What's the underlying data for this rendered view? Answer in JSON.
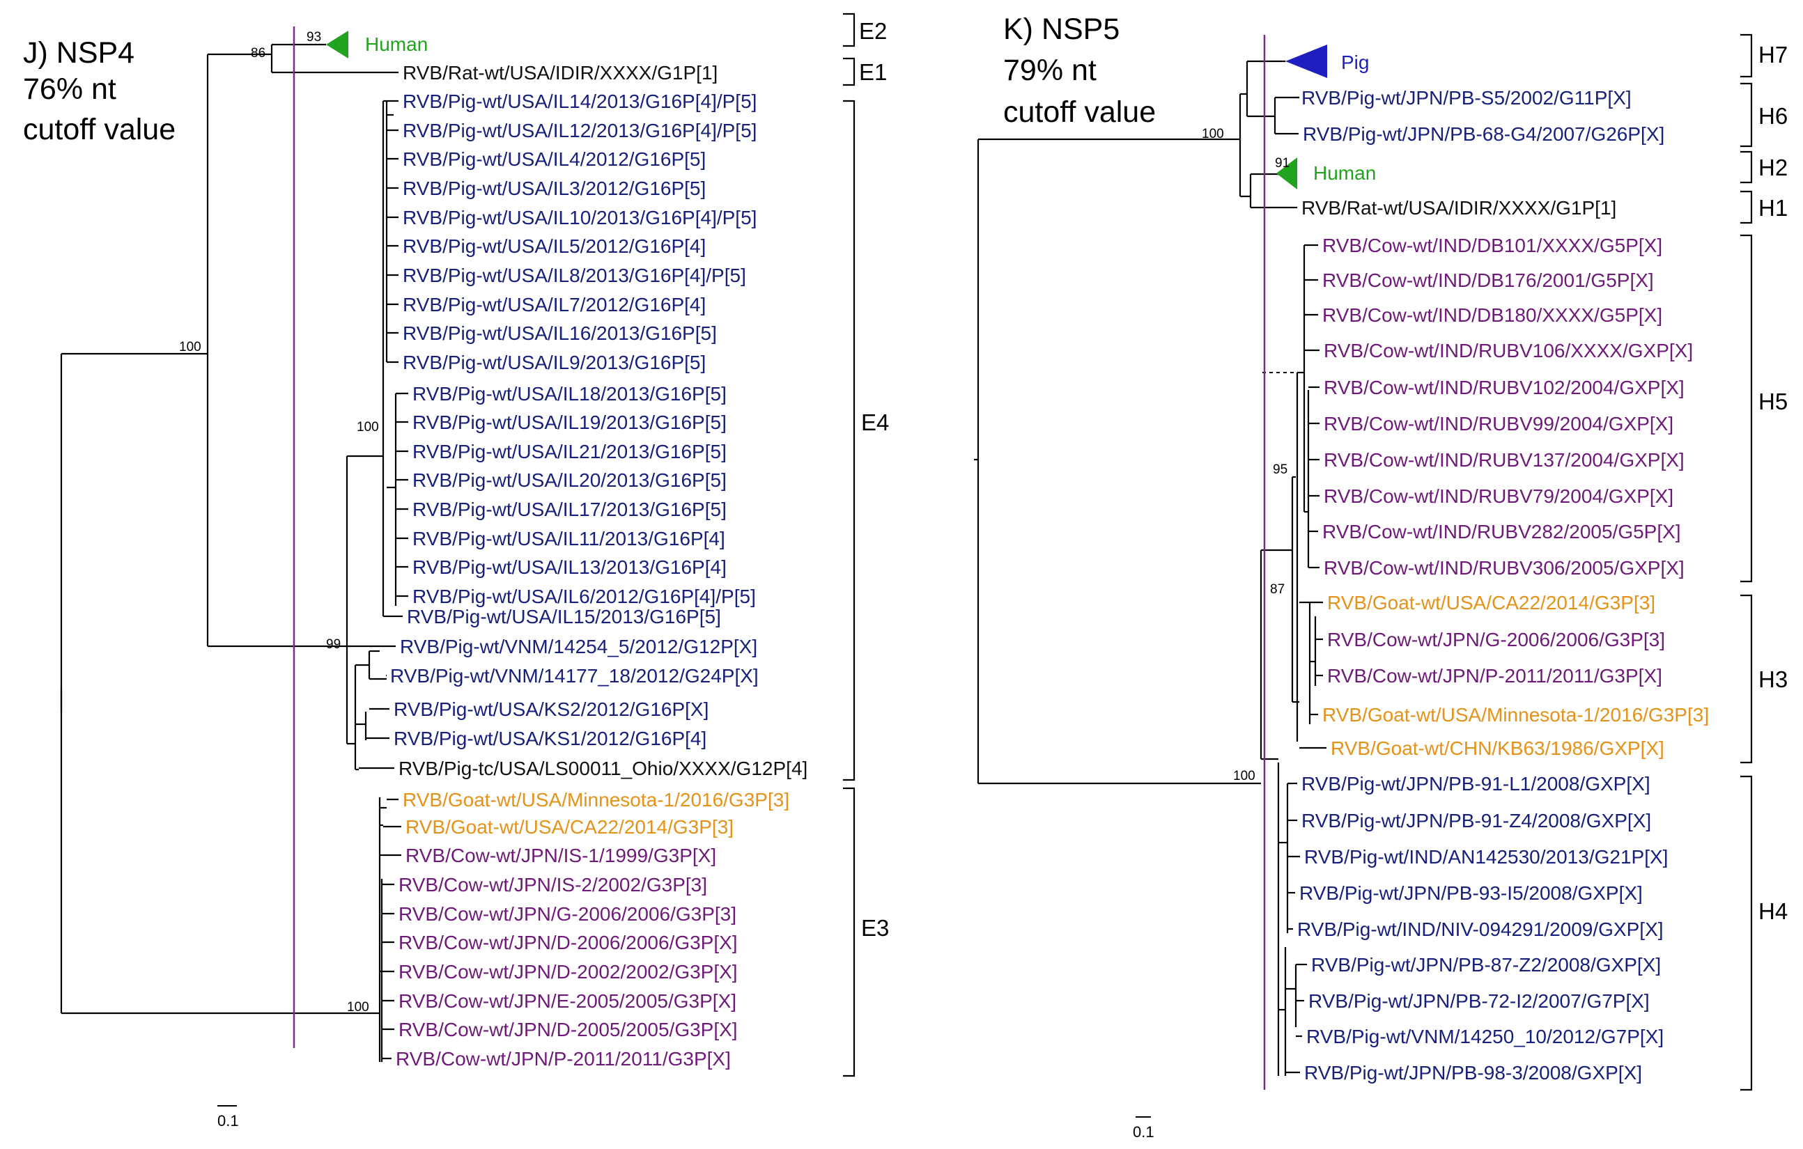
{
  "colors": {
    "pig": "#17207a",
    "cow": "#6e1a78",
    "goat": "#e5921a",
    "human": "#22a31f",
    "rat": "#111111",
    "cutoff": "#7a2a8a",
    "pig_clade": "#1f1fbf"
  },
  "panels": [
    {
      "title": [
        "J) NSP4",
        "76% nt",
        "cutoff value"
      ],
      "scale_label": "0.1",
      "collapsed": [
        {
          "label": "Human",
          "color": "human",
          "bootstrap": "93"
        }
      ],
      "leaves": [
        {
          "label": "RVB/Rat-wt/USA/IDIR/XXXX/G1P[1]",
          "color": "rat"
        },
        {
          "label": "RVB/Pig-wt/USA/IL14/2013/G16P[4]/P[5]",
          "color": "pig"
        },
        {
          "label": "RVB/Pig-wt/USA/IL12/2013/G16P[4]/P[5]",
          "color": "pig"
        },
        {
          "label": "RVB/Pig-wt/USA/IL4/2012/G16P[5]",
          "color": "pig"
        },
        {
          "label": "RVB/Pig-wt/USA/IL3/2012/G16P[5]",
          "color": "pig"
        },
        {
          "label": "RVB/Pig-wt/USA/IL10/2013/G16P[4]/P[5]",
          "color": "pig"
        },
        {
          "label": "RVB/Pig-wt/USA/IL5/2012/G16P[4]",
          "color": "pig"
        },
        {
          "label": "RVB/Pig-wt/USA/IL8/2013/G16P[4]/P[5]",
          "color": "pig"
        },
        {
          "label": "RVB/Pig-wt/USA/IL7/2012/G16P[4]",
          "color": "pig"
        },
        {
          "label": "RVB/Pig-wt/USA/IL16/2013/G16P[5]",
          "color": "pig"
        },
        {
          "label": "RVB/Pig-wt/USA/IL9/2013/G16P[5]",
          "color": "pig"
        },
        {
          "label": "RVB/Pig-wt/USA/IL18/2013/G16P[5]",
          "color": "pig"
        },
        {
          "label": "RVB/Pig-wt/USA/IL19/2013/G16P[5]",
          "color": "pig"
        },
        {
          "label": "RVB/Pig-wt/USA/IL21/2013/G16P[5]",
          "color": "pig"
        },
        {
          "label": "RVB/Pig-wt/USA/IL20/2013/G16P[5]",
          "color": "pig"
        },
        {
          "label": "RVB/Pig-wt/USA/IL17/2013/G16P[5]",
          "color": "pig"
        },
        {
          "label": "RVB/Pig-wt/USA/IL11/2013/G16P[4]",
          "color": "pig"
        },
        {
          "label": "RVB/Pig-wt/USA/IL13/2013/G16P[4]",
          "color": "pig"
        },
        {
          "label": "RVB/Pig-wt/USA/IL6/2012/G16P[4]/P[5]",
          "color": "pig"
        },
        {
          "label": "RVB/Pig-wt/USA/IL15/2013/G16P[5]",
          "color": "pig"
        },
        {
          "label": "RVB/Pig-wt/VNM/14254_5/2012/G12P[X]",
          "color": "pig"
        },
        {
          "label": "RVB/Pig-wt/VNM/14177_18/2012/G24P[X]",
          "color": "pig"
        },
        {
          "label": "RVB/Pig-wt/USA/KS2/2012/G16P[X]",
          "color": "pig"
        },
        {
          "label": "RVB/Pig-wt/USA/KS1/2012/G16P[4]",
          "color": "pig"
        },
        {
          "label": "RVB/Pig-tc/USA/LS00011_Ohio/XXXX/G12P[4]",
          "color": "rat"
        },
        {
          "label": "RVB/Goat-wt/USA/Minnesota-1/2016/G3P[3]",
          "color": "goat"
        },
        {
          "label": "RVB/Goat-wt/USA/CA22/2014/G3P[3]",
          "color": "goat"
        },
        {
          "label": "RVB/Cow-wt/JPN/IS-1/1999/G3P[X]",
          "color": "cow"
        },
        {
          "label": "RVB/Cow-wt/JPN/IS-2/2002/G3P[3]",
          "color": "cow"
        },
        {
          "label": "RVB/Cow-wt/JPN/G-2006/2006/G3P[3]",
          "color": "cow"
        },
        {
          "label": "RVB/Cow-wt/JPN/D-2006/2006/G3P[X]",
          "color": "cow"
        },
        {
          "label": "RVB/Cow-wt/JPN/D-2002/2002/G3P[X]",
          "color": "cow"
        },
        {
          "label": "RVB/Cow-wt/JPN/E-2005/2005/G3P[X]",
          "color": "cow"
        },
        {
          "label": "RVB/Cow-wt/JPN/D-2005/2005/G3P[X]",
          "color": "cow"
        },
        {
          "label": "RVB/Cow-wt/JPN/P-2011/2011/G3P[X]",
          "color": "cow"
        }
      ],
      "bootstraps": [
        "86",
        "100",
        "100",
        "99",
        "100"
      ],
      "groups": [
        "E2",
        "E1",
        "E4",
        "E3"
      ]
    },
    {
      "title": [
        "K) NSP5",
        "79% nt",
        "cutoff value"
      ],
      "scale_label": "0.1",
      "collapsed": [
        {
          "label": "Pig",
          "color": "pig_clade",
          "bootstrap": ""
        },
        {
          "label": "Human",
          "color": "human",
          "bootstrap": "91"
        }
      ],
      "leaves": [
        {
          "label": "RVB/Pig-wt/JPN/PB-S5/2002/G11P[X]",
          "color": "pig"
        },
        {
          "label": "RVB/Pig-wt/JPN/PB-68-G4/2007/G26P[X]",
          "color": "pig"
        },
        {
          "label": "RVB/Rat-wt/USA/IDIR/XXXX/G1P[1]",
          "color": "rat"
        },
        {
          "label": "RVB/Cow-wt/IND/DB101/XXXX/G5P[X]",
          "color": "cow"
        },
        {
          "label": "RVB/Cow-wt/IND/DB176/2001/G5P[X]",
          "color": "cow"
        },
        {
          "label": "RVB/Cow-wt/IND/DB180/XXXX/G5P[X]",
          "color": "cow"
        },
        {
          "label": "RVB/Cow-wt/IND/RUBV106/XXXX/GXP[X]",
          "color": "cow"
        },
        {
          "label": "RVB/Cow-wt/IND/RUBV102/2004/GXP[X]",
          "color": "cow"
        },
        {
          "label": "RVB/Cow-wt/IND/RUBV99/2004/GXP[X]",
          "color": "cow"
        },
        {
          "label": "RVB/Cow-wt/IND/RUBV137/2004/GXP[X]",
          "color": "cow"
        },
        {
          "label": "RVB/Cow-wt/IND/RUBV79/2004/GXP[X]",
          "color": "cow"
        },
        {
          "label": "RVB/Cow-wt/IND/RUBV282/2005/G5P[X]",
          "color": "cow"
        },
        {
          "label": "RVB/Cow-wt/IND/RUBV306/2005/GXP[X]",
          "color": "cow"
        },
        {
          "label": "RVB/Goat-wt/USA/CA22/2014/G3P[3]",
          "color": "goat"
        },
        {
          "label": "RVB/Cow-wt/JPN/G-2006/2006/G3P[3]",
          "color": "cow"
        },
        {
          "label": "RVB/Cow-wt/JPN/P-2011/2011/G3P[X]",
          "color": "cow"
        },
        {
          "label": "RVB/Goat-wt/USA/Minnesota-1/2016/G3P[3]",
          "color": "goat"
        },
        {
          "label": "RVB/Goat-wt/CHN/KB63/1986/GXP[X]",
          "color": "goat"
        },
        {
          "label": "RVB/Pig-wt/JPN/PB-91-L1/2008/GXP[X]",
          "color": "pig"
        },
        {
          "label": "RVB/Pig-wt/JPN/PB-91-Z4/2008/GXP[X]",
          "color": "pig"
        },
        {
          "label": "RVB/Pig-wt/IND/AN142530/2013/G21P[X]",
          "color": "pig"
        },
        {
          "label": "RVB/Pig-wt/JPN/PB-93-I5/2008/GXP[X]",
          "color": "pig"
        },
        {
          "label": "RVB/Pig-wt/IND/NIV-094291/2009/GXP[X]",
          "color": "pig"
        },
        {
          "label": "RVB/Pig-wt/JPN/PB-87-Z2/2008/GXP[X]",
          "color": "pig"
        },
        {
          "label": "RVB/Pig-wt/JPN/PB-72-I2/2007/G7P[X]",
          "color": "pig"
        },
        {
          "label": "RVB/Pig-wt/VNM/14250_10/2012/G7P[X]",
          "color": "pig"
        },
        {
          "label": "RVB/Pig-wt/JPN/PB-98-3/2008/GXP[X]",
          "color": "pig"
        }
      ],
      "bootstraps": [
        "100",
        "95",
        "87",
        "100"
      ],
      "groups": [
        "H7",
        "H6",
        "H2",
        "H1",
        "H5",
        "H3",
        "H4"
      ]
    }
  ]
}
